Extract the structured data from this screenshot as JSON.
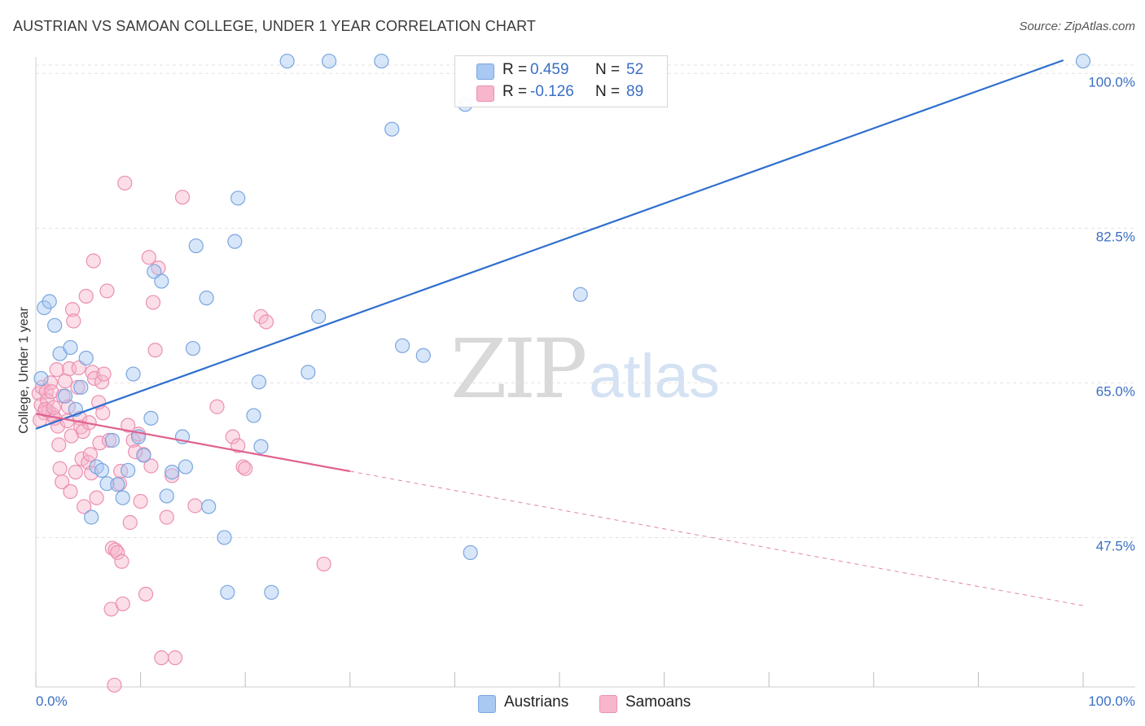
{
  "title": "AUSTRIAN VS SAMOAN COLLEGE, UNDER 1 YEAR CORRELATION CHART",
  "source": "Source: ZipAtlas.com",
  "watermark": {
    "part1": "ZIP",
    "part2": "atlas"
  },
  "legend": {
    "rows": [
      {
        "r_label": "R =",
        "r_value": "0.459",
        "n_label": "N =",
        "n_value": "52",
        "color": "#a9c8f2"
      },
      {
        "r_label": "R =",
        "r_value": "-0.126",
        "n_label": "N =",
        "n_value": "89",
        "color": "#f7b6cc"
      }
    ]
  },
  "bottom_legend": [
    {
      "label": "Austrians",
      "color": "#a9c8f2"
    },
    {
      "label": "Samoans",
      "color": "#f7b6cc"
    }
  ],
  "colors": {
    "austrians_fill": "#a9c8f2",
    "austrians_stroke": "#7aa6e0",
    "austrians_line": "#2f6fcf",
    "samoans_fill": "#f7b6cc",
    "samoans_stroke": "#ec8fb1",
    "samoans_line": "#e0628f",
    "grid": "#e2e2e2",
    "tick_text": "#3a6fc4"
  },
  "chart_data": {
    "type": "scatter",
    "title": "AUSTRIAN VS SAMOAN COLLEGE, UNDER 1 YEAR CORRELATION CHART",
    "xlabel": "",
    "ylabel": "College, Under 1 year",
    "xlim": [
      0,
      100
    ],
    "ylim": [
      30.6,
      101.5
    ],
    "x_tick_labels": [
      "0.0%",
      "100.0%"
    ],
    "y_ticks": [
      47.5,
      65.0,
      82.5,
      100.0
    ],
    "y_tick_labels": [
      "47.5%",
      "65.0%",
      "82.5%",
      "100.0%"
    ],
    "grid": true,
    "legend_position": "top-center",
    "series": [
      {
        "name": "Austrians",
        "r": 0.459,
        "n": 52,
        "trend": {
          "x": [
            0,
            100
          ],
          "y": [
            59.8,
            102.3
          ],
          "style": "solid"
        },
        "points": [
          [
            0.5,
            65.5
          ],
          [
            0.8,
            73.5
          ],
          [
            1.3,
            74.2
          ],
          [
            1.8,
            71.5
          ],
          [
            2.3,
            68.3
          ],
          [
            3.3,
            69.0
          ],
          [
            2.8,
            63.5
          ],
          [
            3.8,
            62.0
          ],
          [
            4.3,
            64.5
          ],
          [
            4.8,
            67.8
          ],
          [
            5.3,
            49.8
          ],
          [
            5.8,
            55.5
          ],
          [
            6.3,
            55.1
          ],
          [
            6.8,
            53.6
          ],
          [
            7.3,
            58.5
          ],
          [
            7.8,
            53.5
          ],
          [
            8.3,
            52.0
          ],
          [
            8.8,
            55.1
          ],
          [
            9.3,
            66.0
          ],
          [
            9.8,
            58.9
          ],
          [
            10.3,
            56.8
          ],
          [
            11.0,
            61.0
          ],
          [
            11.3,
            77.6
          ],
          [
            12.0,
            76.5
          ],
          [
            12.5,
            52.2
          ],
          [
            13.0,
            54.9
          ],
          [
            14.0,
            58.9
          ],
          [
            14.3,
            55.5
          ],
          [
            15.0,
            68.9
          ],
          [
            15.3,
            80.5
          ],
          [
            16.3,
            74.6
          ],
          [
            16.5,
            51.0
          ],
          [
            18.0,
            47.5
          ],
          [
            18.3,
            41.3
          ],
          [
            19.0,
            81.0
          ],
          [
            19.3,
            85.9
          ],
          [
            20.8,
            61.3
          ],
          [
            21.3,
            65.1
          ],
          [
            21.5,
            57.8
          ],
          [
            22.5,
            41.3
          ],
          [
            24.0,
            101.4
          ],
          [
            28.0,
            101.4
          ],
          [
            27.0,
            72.5
          ],
          [
            26.0,
            66.2
          ],
          [
            33.0,
            101.4
          ],
          [
            34.0,
            93.7
          ],
          [
            35.0,
            69.2
          ],
          [
            37.0,
            68.1
          ],
          [
            52.0,
            75.0
          ],
          [
            41.0,
            96.5
          ],
          [
            41.5,
            45.8
          ],
          [
            100.0,
            101.4
          ]
        ]
      },
      {
        "name": "Samoans",
        "r": -0.126,
        "n": 89,
        "trend": {
          "x": [
            0,
            30
          ],
          "y": [
            61.5,
            55.0
          ],
          "style": "solid",
          "extended": {
            "x": [
              30,
              100
            ],
            "y": [
              55.0,
              39.8
            ],
            "style": "dashed"
          }
        },
        "points": [
          [
            0.3,
            63.8
          ],
          [
            0.5,
            62.5
          ],
          [
            0.6,
            64.5
          ],
          [
            0.8,
            61.6
          ],
          [
            1.0,
            64.0
          ],
          [
            1.1,
            63.0
          ],
          [
            1.2,
            61.8
          ],
          [
            1.4,
            65.0
          ],
          [
            1.5,
            64.0
          ],
          [
            1.6,
            61.4
          ],
          [
            1.8,
            61.0
          ],
          [
            2.0,
            66.5
          ],
          [
            2.1,
            60.1
          ],
          [
            2.3,
            55.3
          ],
          [
            2.5,
            53.8
          ],
          [
            2.6,
            63.5
          ],
          [
            2.8,
            65.2
          ],
          [
            3.0,
            60.7
          ],
          [
            3.1,
            62.3
          ],
          [
            3.2,
            66.6
          ],
          [
            3.3,
            52.7
          ],
          [
            3.5,
            73.3
          ],
          [
            3.6,
            72.0
          ],
          [
            3.8,
            54.9
          ],
          [
            4.0,
            64.5
          ],
          [
            4.1,
            66.7
          ],
          [
            4.2,
            61.0
          ],
          [
            4.3,
            60.0
          ],
          [
            4.4,
            56.4
          ],
          [
            4.5,
            59.5
          ],
          [
            4.6,
            51.0
          ],
          [
            4.8,
            74.8
          ],
          [
            5.0,
            56.0
          ],
          [
            5.1,
            60.5
          ],
          [
            5.3,
            54.8
          ],
          [
            5.4,
            66.2
          ],
          [
            5.5,
            78.8
          ],
          [
            5.6,
            65.5
          ],
          [
            5.8,
            52.0
          ],
          [
            6.0,
            62.8
          ],
          [
            6.1,
            58.2
          ],
          [
            6.3,
            65.1
          ],
          [
            6.4,
            61.6
          ],
          [
            6.5,
            66.0
          ],
          [
            6.8,
            75.4
          ],
          [
            7.0,
            58.5
          ],
          [
            7.2,
            39.4
          ],
          [
            7.3,
            46.3
          ],
          [
            7.5,
            30.8
          ],
          [
            7.6,
            46.1
          ],
          [
            7.8,
            45.8
          ],
          [
            8.0,
            53.6
          ],
          [
            8.1,
            55.0
          ],
          [
            8.2,
            44.8
          ],
          [
            8.3,
            40.0
          ],
          [
            8.5,
            87.6
          ],
          [
            8.8,
            60.2
          ],
          [
            9.0,
            49.2
          ],
          [
            9.3,
            58.5
          ],
          [
            9.8,
            59.2
          ],
          [
            10.0,
            51.6
          ],
          [
            10.3,
            56.9
          ],
          [
            10.5,
            41.1
          ],
          [
            10.8,
            79.2
          ],
          [
            11.0,
            55.6
          ],
          [
            11.2,
            74.1
          ],
          [
            11.4,
            68.7
          ],
          [
            11.7,
            78.0
          ],
          [
            12.0,
            33.9
          ],
          [
            12.5,
            49.8
          ],
          [
            13.0,
            54.5
          ],
          [
            13.3,
            33.9
          ],
          [
            14.0,
            86.0
          ],
          [
            15.2,
            51.1
          ],
          [
            17.3,
            62.3
          ],
          [
            18.8,
            58.9
          ],
          [
            19.3,
            57.9
          ],
          [
            19.8,
            55.5
          ],
          [
            20.0,
            55.3
          ],
          [
            21.5,
            72.5
          ],
          [
            22.0,
            71.9
          ],
          [
            27.5,
            44.5
          ],
          [
            0.4,
            60.8
          ],
          [
            0.9,
            62.0
          ],
          [
            1.7,
            62.2
          ],
          [
            2.2,
            58.0
          ],
          [
            3.4,
            59.0
          ],
          [
            5.2,
            56.9
          ],
          [
            9.5,
            57.2
          ]
        ]
      }
    ]
  }
}
